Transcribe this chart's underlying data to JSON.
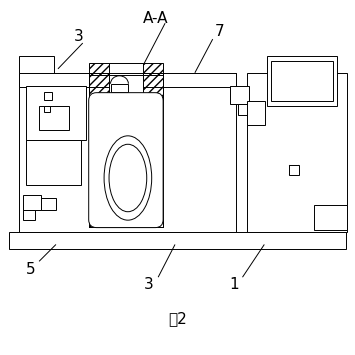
{
  "title": "图2",
  "labels": {
    "AA": "A-A",
    "num3_top": "3",
    "num7": "7",
    "num5": "5",
    "num3_bot": "3",
    "num1": "1"
  },
  "bg_color": "#ffffff",
  "line_color": "#000000",
  "fig_size": [
    3.55,
    3.55
  ],
  "dpi": 100
}
